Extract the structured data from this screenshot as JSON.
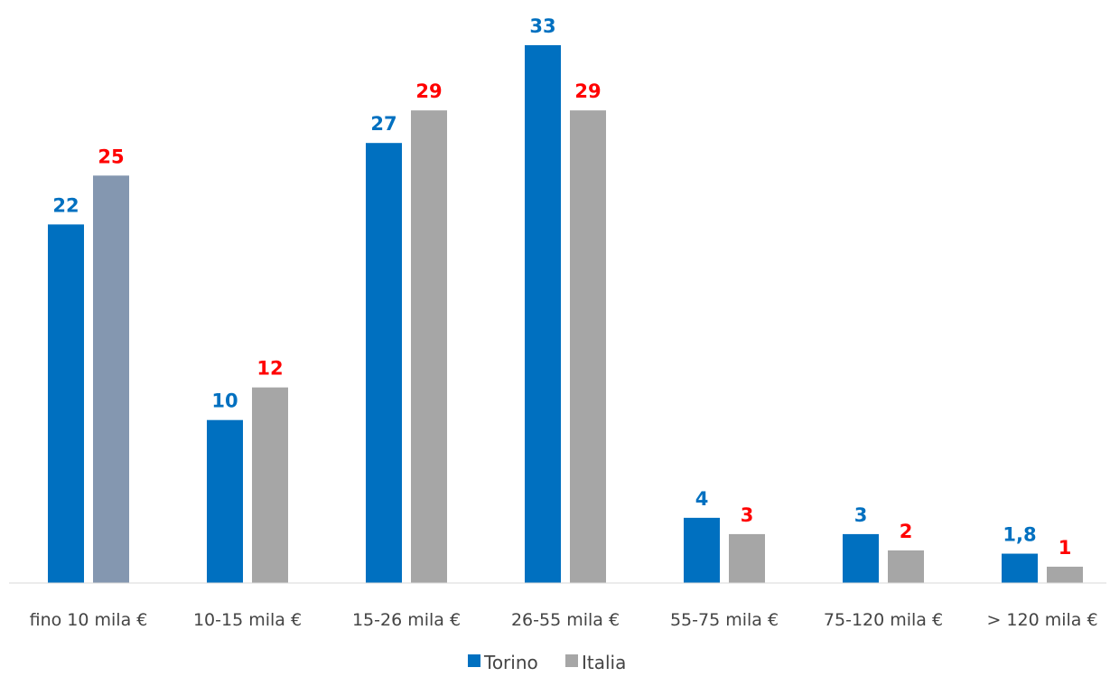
{
  "chart_data": {
    "type": "bar",
    "categories": [
      "fino 10 mila €",
      "10-15 mila €",
      "15-26 mila €",
      "26-55 mila €",
      "55-75 mila €",
      "75-120 mila €",
      "> 120 mila €"
    ],
    "series": [
      {
        "name": "Torino",
        "values": [
          22,
          10,
          27,
          33,
          4,
          3,
          1.8
        ],
        "labels": [
          "22",
          "10",
          "27",
          "33",
          "4",
          "3",
          "1,8"
        ],
        "color": "#0070C0",
        "label_color": "#0070C0"
      },
      {
        "name": "Italia",
        "values": [
          25,
          12,
          29,
          29,
          3,
          2,
          1
        ],
        "labels": [
          "25",
          "12",
          "29",
          "29",
          "3",
          "2",
          "1"
        ],
        "color": "#A6A6A6",
        "first_bar_color": "#8497B0",
        "label_color": "#FF0000"
      }
    ],
    "legend_position": "bottom-center",
    "grid": false
  }
}
